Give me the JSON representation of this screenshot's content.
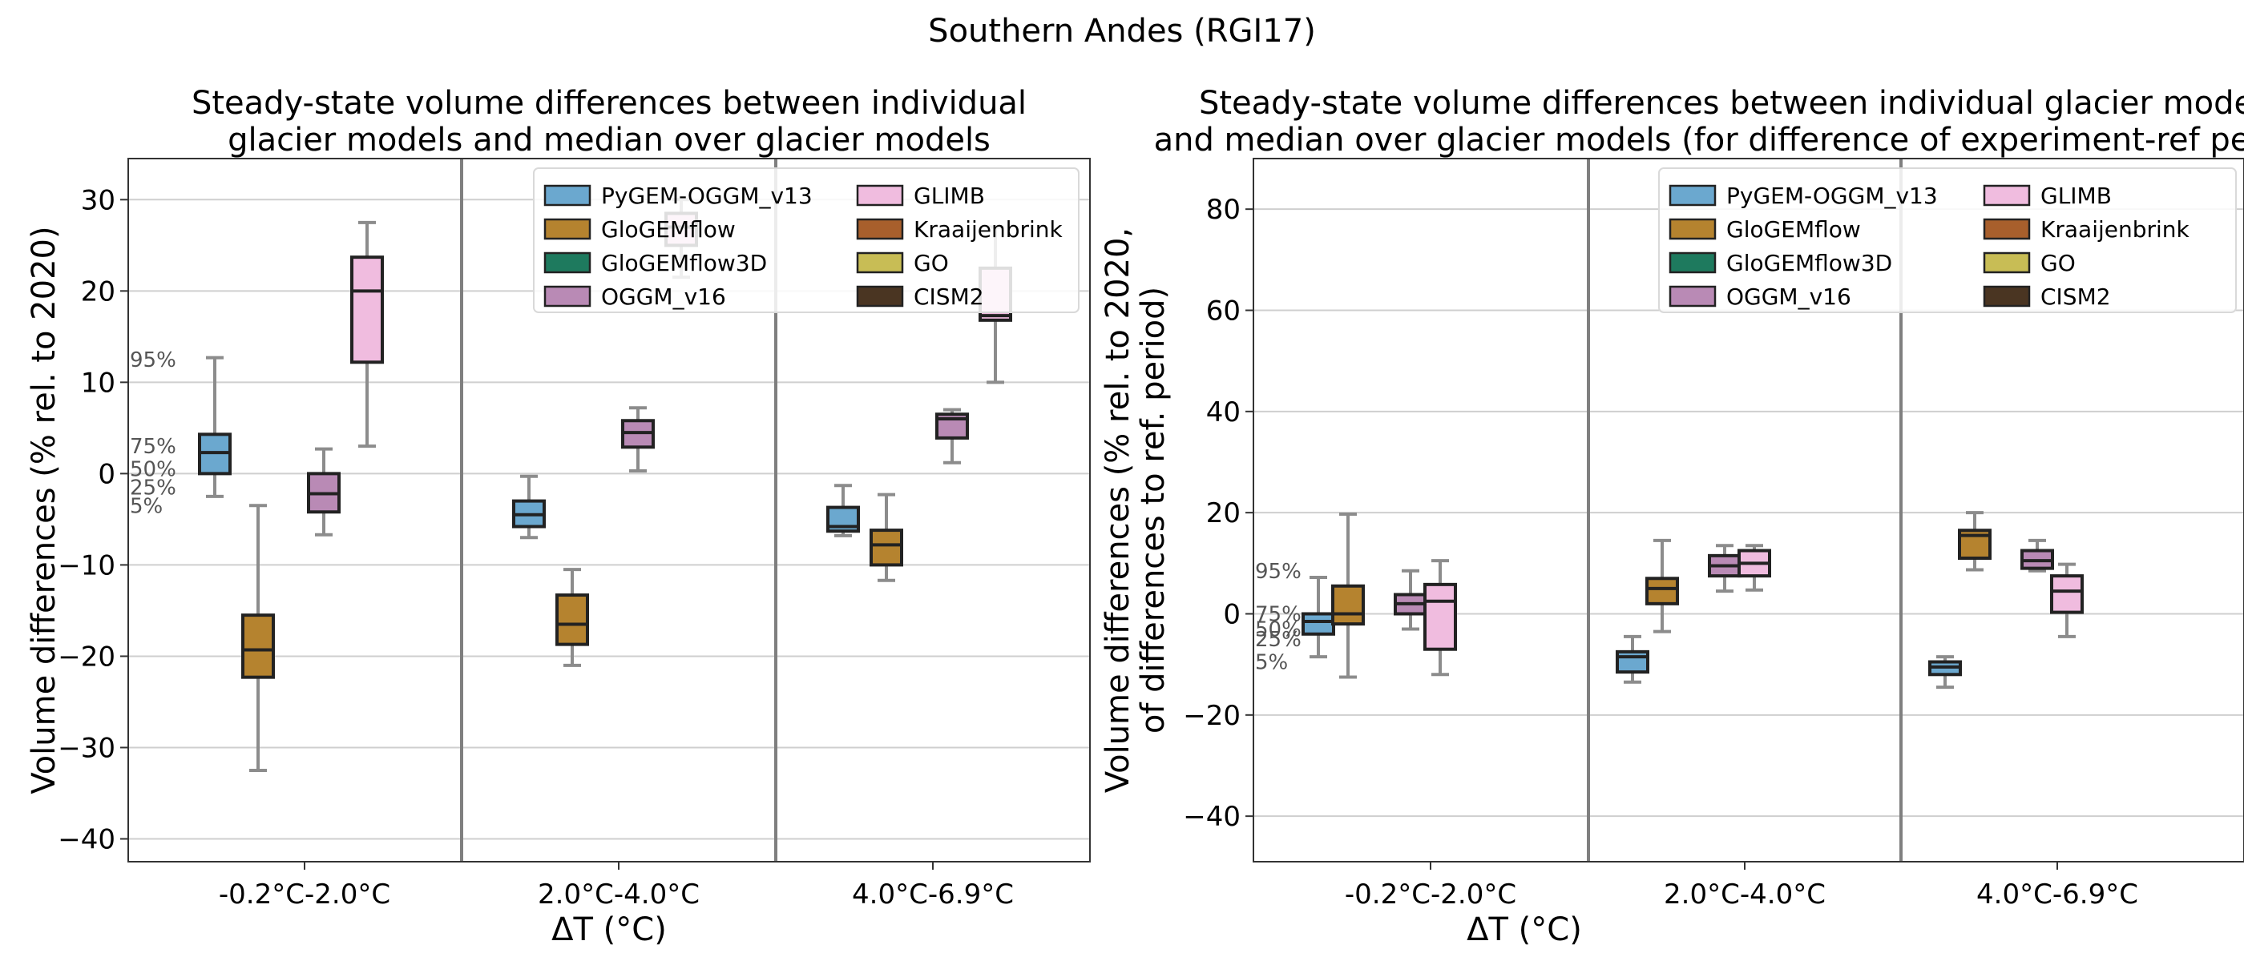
{
  "suptitle": "Southern Andes (RGI17)",
  "colors": {
    "PyGEM-OGGM_v13": "#6ba8cf",
    "GloGEMflow": "#b5832f",
    "GloGEMflow3D": "#1e7a5e",
    "OGGM_v16": "#b98ab5",
    "GLIMB": "#f0bcdf",
    "Kraaijenbrink": "#a85f2c",
    "GO": "#c8bd55",
    "CISM2": "#4a3522"
  },
  "legend_entries": [
    "PyGEM-OGGM_v13",
    "GloGEMflow",
    "GloGEMflow3D",
    "OGGM_v16",
    "GLIMB",
    "Kraaijenbrink",
    "GO",
    "CISM2"
  ],
  "percentile_labels": [
    "95%",
    "75%",
    "50%",
    "25%",
    "5%"
  ],
  "chart_data": [
    {
      "type": "box",
      "title_lines": [
        "Steady-state volume differences between individual",
        "glacier models and median over glacier models"
      ],
      "ylabel_lines": [
        "Volume differences (% rel. to 2020)"
      ],
      "xlabel": "ΔT (°C)",
      "categories": [
        "-0.2°C-2.0°C",
        "2.0°C-4.0°C",
        "4.0°C-6.9°C"
      ],
      "ylim": [
        -42.5,
        34.5
      ],
      "yticks": [
        30,
        20,
        10,
        0,
        -10,
        -20,
        -30,
        -40
      ],
      "grid": true,
      "legend_position": "top-right",
      "percentile_label_values": [
        12.5,
        3,
        0.5,
        -1.5,
        -3.5
      ],
      "series": [
        {
          "name": "PyGEM-OGGM_v13",
          "boxes": [
            {
              "group": 0,
              "p5": -2.5,
              "q1": 0,
              "median": 2.3,
              "q3": 4.3,
              "p95": 12.7
            },
            {
              "group": 1,
              "p5": -7,
              "q1": -5.8,
              "median": -4.5,
              "q3": -3,
              "p95": -0.3
            },
            {
              "group": 2,
              "p5": -6.8,
              "q1": -6.3,
              "median": -5.8,
              "q3": -3.7,
              "p95": -1.3
            }
          ]
        },
        {
          "name": "GloGEMflow",
          "boxes": [
            {
              "group": 0,
              "p5": -32.5,
              "q1": -22.3,
              "median": -19.3,
              "q3": -15.5,
              "p95": -3.5
            },
            {
              "group": 1,
              "p5": -21,
              "q1": -18.7,
              "median": -16.5,
              "q3": -13.3,
              "p95": -10.5
            },
            {
              "group": 2,
              "p5": -11.7,
              "q1": -10,
              "median": -7.8,
              "q3": -6.2,
              "p95": -2.3
            }
          ]
        },
        {
          "name": "OGGM_v16",
          "boxes": [
            {
              "group": 0,
              "p5": -6.7,
              "q1": -4.2,
              "median": -2.2,
              "q3": 0,
              "p95": 2.7
            },
            {
              "group": 1,
              "p5": 0.3,
              "q1": 2.9,
              "median": 4.5,
              "q3": 5.8,
              "p95": 7.2
            },
            {
              "group": 2,
              "p5": 1.2,
              "q1": 3.9,
              "median": 6,
              "q3": 6.5,
              "p95": 7
            }
          ]
        },
        {
          "name": "GLIMB",
          "boxes": [
            {
              "group": 0,
              "p5": 3,
              "q1": 12.2,
              "median": 20,
              "q3": 23.7,
              "p95": 27.5
            },
            {
              "group": 1,
              "p5": 21.5,
              "q1": 25,
              "median": 27,
              "q3": 28.5,
              "p95": 30
            },
            {
              "group": 2,
              "p5": 10,
              "q1": 16.8,
              "median": 17.3,
              "q3": 22.5,
              "p95": 27
            }
          ]
        }
      ]
    },
    {
      "type": "box",
      "title_lines": [
        "Steady-state volume differences between individual glacier models",
        "and median over glacier models (for difference of experiment-ref period)"
      ],
      "ylabel_lines": [
        "Volume differences (% rel. to 2020,",
        "of differences to ref. period)"
      ],
      "xlabel": "ΔT (°C)",
      "categories": [
        "-0.2°C-2.0°C",
        "2.0°C-4.0°C",
        "4.0°C-6.9°C"
      ],
      "ylim": [
        -49,
        90
      ],
      "yticks": [
        80,
        60,
        40,
        20,
        0,
        -20,
        -40
      ],
      "grid": true,
      "legend_position": "top-right",
      "percentile_label_values": [
        8.5,
        0,
        -3,
        -5,
        -9.5
      ],
      "series": [
        {
          "name": "PyGEM-OGGM_v13",
          "boxes": [
            {
              "group": 0,
              "p5": -8.5,
              "q1": -4,
              "median": -1.5,
              "q3": 0,
              "p95": 7.2
            },
            {
              "group": 1,
              "p5": -13.5,
              "q1": -11.5,
              "median": -8.5,
              "q3": -7.5,
              "p95": -4.5
            },
            {
              "group": 2,
              "p5": -14.5,
              "q1": -12,
              "median": -10.5,
              "q3": -9.5,
              "p95": -8.5
            }
          ]
        },
        {
          "name": "GloGEMflow",
          "boxes": [
            {
              "group": 0,
              "p5": -12.5,
              "q1": -2,
              "median": 0,
              "q3": 5.5,
              "p95": 19.7
            },
            {
              "group": 1,
              "p5": -3.5,
              "q1": 2,
              "median": 5,
              "q3": 7,
              "p95": 14.5
            },
            {
              "group": 2,
              "p5": 8.7,
              "q1": 11,
              "median": 15.5,
              "q3": 16.5,
              "p95": 20
            }
          ]
        },
        {
          "name": "OGGM_v16",
          "boxes": [
            {
              "group": 0,
              "p5": -3,
              "q1": 0,
              "median": 2,
              "q3": 3.8,
              "p95": 8.5
            },
            {
              "group": 1,
              "p5": 4.5,
              "q1": 7.5,
              "median": 9.5,
              "q3": 11.5,
              "p95": 13.5
            },
            {
              "group": 2,
              "p5": 8.5,
              "q1": 9,
              "median": 10.5,
              "q3": 12.5,
              "p95": 14.5
            }
          ]
        },
        {
          "name": "GLIMB",
          "boxes": [
            {
              "group": 0,
              "p5": -12,
              "q1": -7,
              "median": 2.5,
              "q3": 5.8,
              "p95": 10.5
            },
            {
              "group": 1,
              "p5": 4.7,
              "q1": 7.5,
              "median": 10,
              "q3": 12.5,
              "p95": 13.5
            },
            {
              "group": 2,
              "p5": -4.5,
              "q1": 0.3,
              "median": 4.5,
              "q3": 7.5,
              "p95": 9.8
            }
          ]
        }
      ]
    }
  ]
}
